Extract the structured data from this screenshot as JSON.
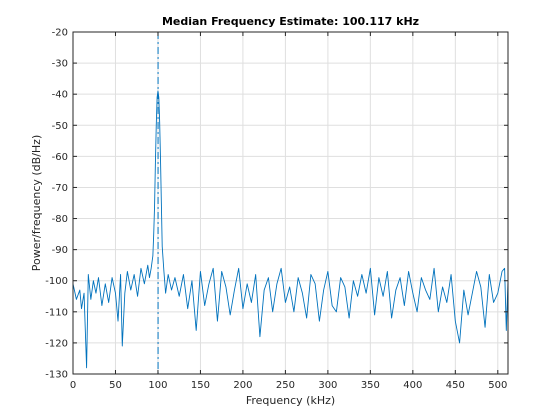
{
  "chart_data": {
    "type": "line",
    "title": "Median Frequency Estimate: 100.117 kHz",
    "xlabel": "Frequency (kHz)",
    "ylabel": "Power/frequency (dB/Hz)",
    "xlim": [
      0,
      512
    ],
    "ylim": [
      -130,
      -20
    ],
    "x_ticks": [
      0,
      50,
      100,
      150,
      200,
      250,
      300,
      350,
      400,
      450,
      500
    ],
    "y_ticks": [
      -130,
      -120,
      -110,
      -100,
      -90,
      -80,
      -70,
      -60,
      -50,
      -40,
      -30,
      -20
    ],
    "grid": true,
    "line_color": "#0072BD",
    "median_marker": {
      "x": 100.117,
      "style": "dash-dot"
    },
    "series": [
      {
        "x": [
          0,
          4,
          8,
          10,
          13,
          16,
          18,
          21,
          24,
          27,
          30,
          34,
          38,
          42,
          46,
          50,
          53,
          56,
          58,
          61,
          64,
          68,
          72,
          76,
          80,
          84,
          88,
          90,
          92,
          94,
          95,
          96,
          97,
          98,
          99,
          100,
          101,
          102,
          103,
          104,
          105,
          107,
          109,
          112,
          116,
          120,
          125,
          130,
          135,
          140,
          145,
          150,
          155,
          160,
          165,
          170,
          175,
          180,
          185,
          190,
          195,
          200,
          205,
          210,
          215,
          220,
          225,
          230,
          235,
          240,
          245,
          250,
          255,
          260,
          265,
          270,
          275,
          280,
          285,
          290,
          295,
          300,
          305,
          310,
          315,
          320,
          325,
          330,
          335,
          340,
          345,
          350,
          355,
          360,
          365,
          370,
          375,
          380,
          385,
          390,
          395,
          400,
          405,
          410,
          415,
          420,
          425,
          430,
          435,
          440,
          445,
          450,
          455,
          460,
          465,
          470,
          475,
          480,
          485,
          490,
          495,
          500,
          505,
          508,
          510,
          512
        ],
        "y": [
          -101,
          -106,
          -103,
          -109,
          -104,
          -128,
          -98,
          -106,
          -100,
          -104,
          -99,
          -108,
          -101,
          -107,
          -99,
          -104,
          -113,
          -98,
          -121,
          -104,
          -97,
          -103,
          -98,
          -105,
          -96,
          -101,
          -95,
          -99,
          -96,
          -92,
          -85,
          -76,
          -62,
          -50,
          -41,
          -39,
          -41,
          -49,
          -61,
          -75,
          -89,
          -97,
          -104,
          -98,
          -103,
          -99,
          -105,
          -98,
          -109,
          -100,
          -116,
          -97,
          -108,
          -101,
          -96,
          -113,
          -97,
          -102,
          -111,
          -103,
          -96,
          -109,
          -101,
          -107,
          -98,
          -118,
          -103,
          -99,
          -110,
          -101,
          -96,
          -107,
          -102,
          -110,
          -99,
          -104,
          -112,
          -98,
          -101,
          -113,
          -103,
          -97,
          -108,
          -110,
          -99,
          -102,
          -112,
          -100,
          -105,
          -98,
          -104,
          -96,
          -111,
          -99,
          -105,
          -97,
          -112,
          -103,
          -99,
          -108,
          -97,
          -104,
          -110,
          -99,
          -103,
          -106,
          -96,
          -110,
          -102,
          -107,
          -98,
          -113,
          -120,
          -103,
          -111,
          -104,
          -97,
          -102,
          -115,
          -98,
          -107,
          -104,
          -97,
          -96,
          -116,
          -100
        ]
      }
    ]
  }
}
